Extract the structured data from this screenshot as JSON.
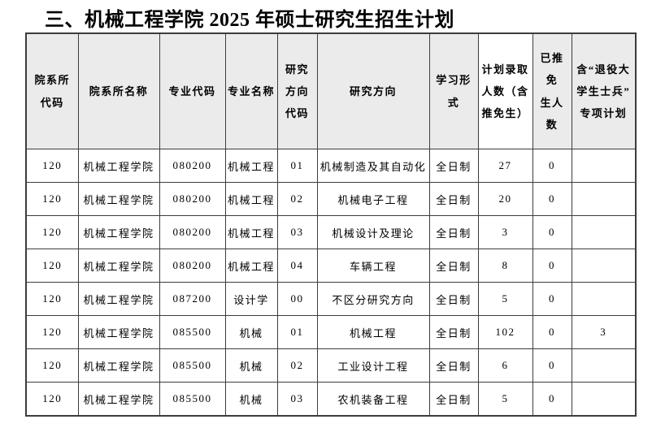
{
  "title": "三、机械工程学院 2025 年硕士研究生招生计划",
  "table": {
    "headers": [
      "院系所\n代码",
      "院系所名称",
      "专业代码",
      "专业名称",
      "研究\n方向\n代码",
      "研究方向",
      "学习形\n式",
      "计划录取\n人数（含\n推免生）",
      "已推免\n生人数",
      "含“退役大\n学生士兵”\n专项计划"
    ],
    "rows": [
      [
        "120",
        "机械工程学院",
        "080200",
        "机械工程",
        "01",
        "机械制造及其自动化",
        "全日制",
        "27",
        "0",
        ""
      ],
      [
        "120",
        "机械工程学院",
        "080200",
        "机械工程",
        "02",
        "机械电子工程",
        "全日制",
        "20",
        "0",
        ""
      ],
      [
        "120",
        "机械工程学院",
        "080200",
        "机械工程",
        "03",
        "机械设计及理论",
        "全日制",
        "3",
        "0",
        ""
      ],
      [
        "120",
        "机械工程学院",
        "080200",
        "机械工程",
        "04",
        "车辆工程",
        "全日制",
        "8",
        "0",
        ""
      ],
      [
        "120",
        "机械工程学院",
        "087200",
        "设计学",
        "00",
        "不区分研究方向",
        "全日制",
        "5",
        "0",
        ""
      ],
      [
        "120",
        "机械工程学院",
        "085500",
        "机械",
        "01",
        "机械工程",
        "全日制",
        "102",
        "0",
        "3"
      ],
      [
        "120",
        "机械工程学院",
        "085500",
        "机械",
        "02",
        "工业设计工程",
        "全日制",
        "6",
        "0",
        ""
      ],
      [
        "120",
        "机械工程学院",
        "085500",
        "机械",
        "03",
        "农机装备工程",
        "全日制",
        "5",
        "0",
        ""
      ]
    ],
    "colors": {
      "header_bg": "#ebebeb",
      "plan_column_bg": "#ffffff",
      "border": "#3c3c3c",
      "text": "#000000"
    }
  }
}
